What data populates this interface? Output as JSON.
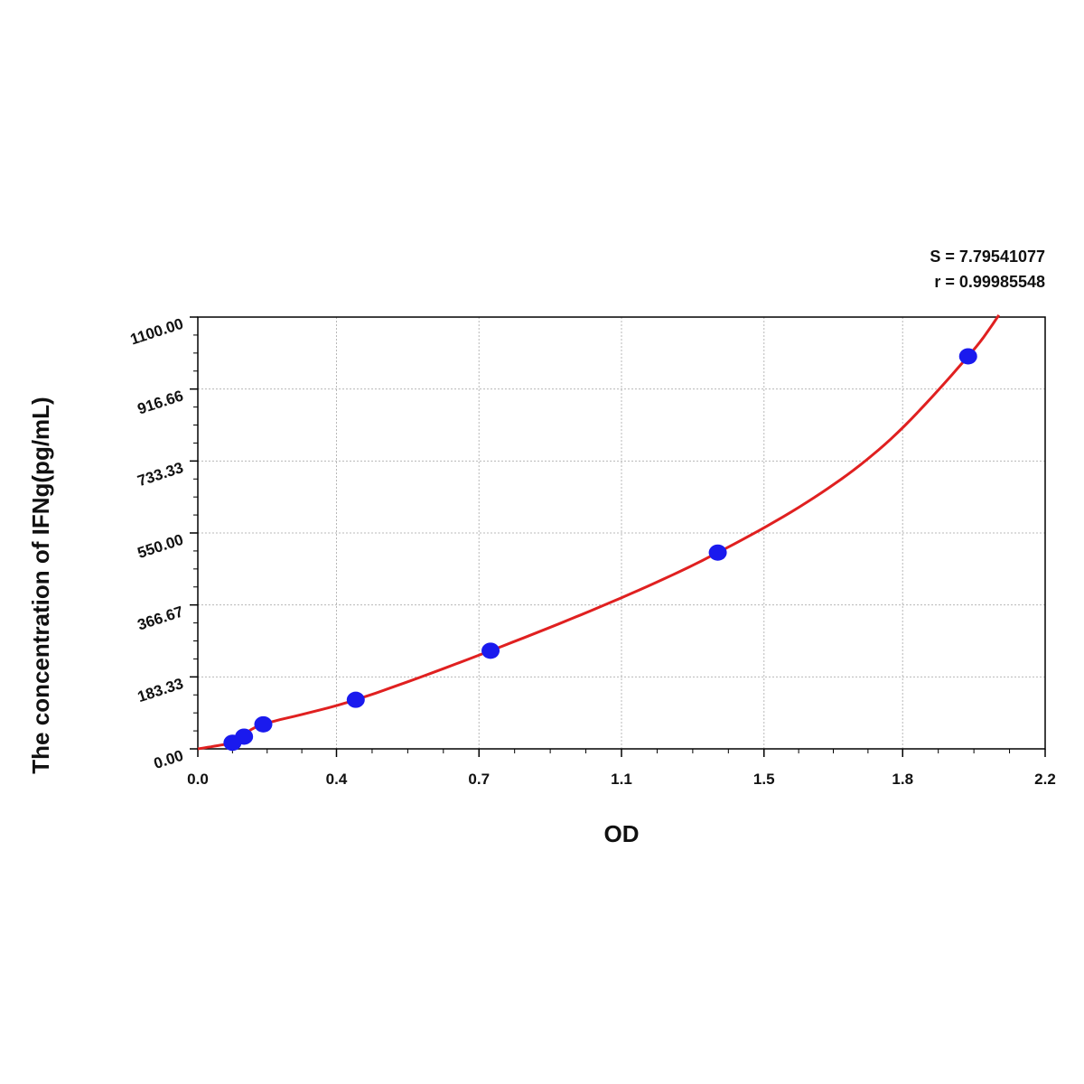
{
  "chart_data": {
    "type": "scatter",
    "title": "",
    "xlabel": "OD",
    "ylabel": "The concentration of IFNg(pg/mL)",
    "xlim": [
      0,
      2.2
    ],
    "ylim": [
      0,
      1100
    ],
    "x_ticks": [
      0.0,
      0.36,
      0.73,
      1.1,
      1.47,
      1.83,
      2.2
    ],
    "x_tick_labels": [
      "0.0",
      "0.4",
      "0.7",
      "1.1",
      "1.5",
      "1.8",
      "2.2"
    ],
    "y_ticks": [
      0,
      183.33,
      366.67,
      550,
      733.33,
      916.66,
      1100
    ],
    "y_tick_labels": [
      "0.00",
      "183.33",
      "366.67",
      "550.00",
      "733.33",
      "916.66",
      "1100.00"
    ],
    "grid": true,
    "annotations": [
      "S = 7.79541077",
      "r = 0.99985548"
    ],
    "series": [
      {
        "type": "scatter",
        "color": "#1a1aee",
        "points": [
          {
            "x": 0.09,
            "y": 15.6
          },
          {
            "x": 0.12,
            "y": 31.2
          },
          {
            "x": 0.17,
            "y": 62.5
          },
          {
            "x": 0.41,
            "y": 125
          },
          {
            "x": 0.76,
            "y": 250
          },
          {
            "x": 1.35,
            "y": 500
          },
          {
            "x": 2.0,
            "y": 1000
          }
        ]
      },
      {
        "type": "line",
        "color": "#e02020",
        "points": [
          {
            "x": 0.0,
            "y": 0
          },
          {
            "x": 0.09,
            "y": 15.6
          },
          {
            "x": 0.12,
            "y": 31.2
          },
          {
            "x": 0.17,
            "y": 62.5
          },
          {
            "x": 0.41,
            "y": 125
          },
          {
            "x": 0.76,
            "y": 250
          },
          {
            "x": 1.1,
            "y": 385
          },
          {
            "x": 1.35,
            "y": 500
          },
          {
            "x": 1.6,
            "y": 640
          },
          {
            "x": 1.8,
            "y": 790
          },
          {
            "x": 2.0,
            "y": 1000
          },
          {
            "x": 2.08,
            "y": 1105
          }
        ]
      }
    ]
  }
}
